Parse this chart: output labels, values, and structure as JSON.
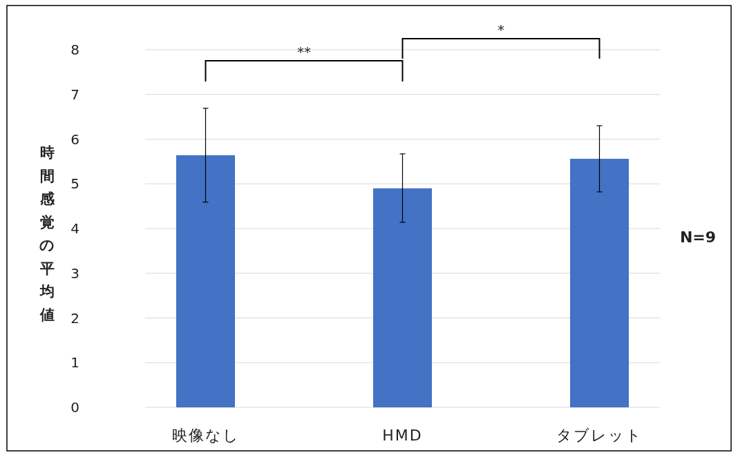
{
  "chart_data": {
    "type": "bar",
    "ylabel": "時間感覚の平均値",
    "categories": [
      "映像なし",
      "HMD",
      "タブレット"
    ],
    "values": [
      5.64,
      4.9,
      5.56
    ],
    "color": "#4472c4",
    "errors": [
      [
        4.59,
        6.69
      ],
      [
        4.14,
        5.67
      ],
      [
        4.82,
        6.3
      ]
    ],
    "ylim": [
      0,
      8
    ],
    "yticks": [
      0,
      1,
      2,
      3,
      4,
      5,
      6,
      7,
      8
    ],
    "grid": "y",
    "annotations": [
      "**",
      "*",
      "N=9"
    ]
  }
}
